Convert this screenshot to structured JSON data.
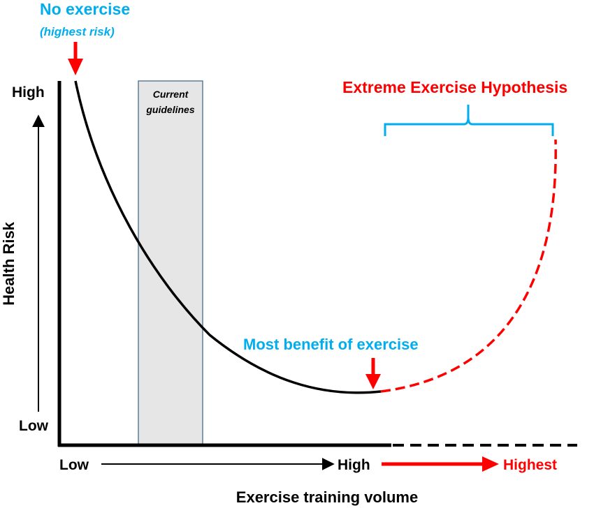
{
  "title": {
    "no_exercise": "No exercise",
    "highest_risk": "(highest risk)"
  },
  "y_axis": {
    "label": "Health Risk",
    "high": "High",
    "low": "Low"
  },
  "x_axis": {
    "label": "Exercise training volume",
    "low": "Low",
    "high": "High",
    "highest": "Highest"
  },
  "guidelines": {
    "line1": "Current",
    "line2": "guidelines"
  },
  "annotations": {
    "extreme": "Extreme Exercise Hypothesis",
    "most_benefit": "Most benefit of exercise"
  },
  "colors": {
    "red": "#ff0000",
    "blue": "#00aeef",
    "black": "#000000",
    "guideline_fill": "#e6e6e6",
    "guideline_border": "#5a7f99"
  }
}
